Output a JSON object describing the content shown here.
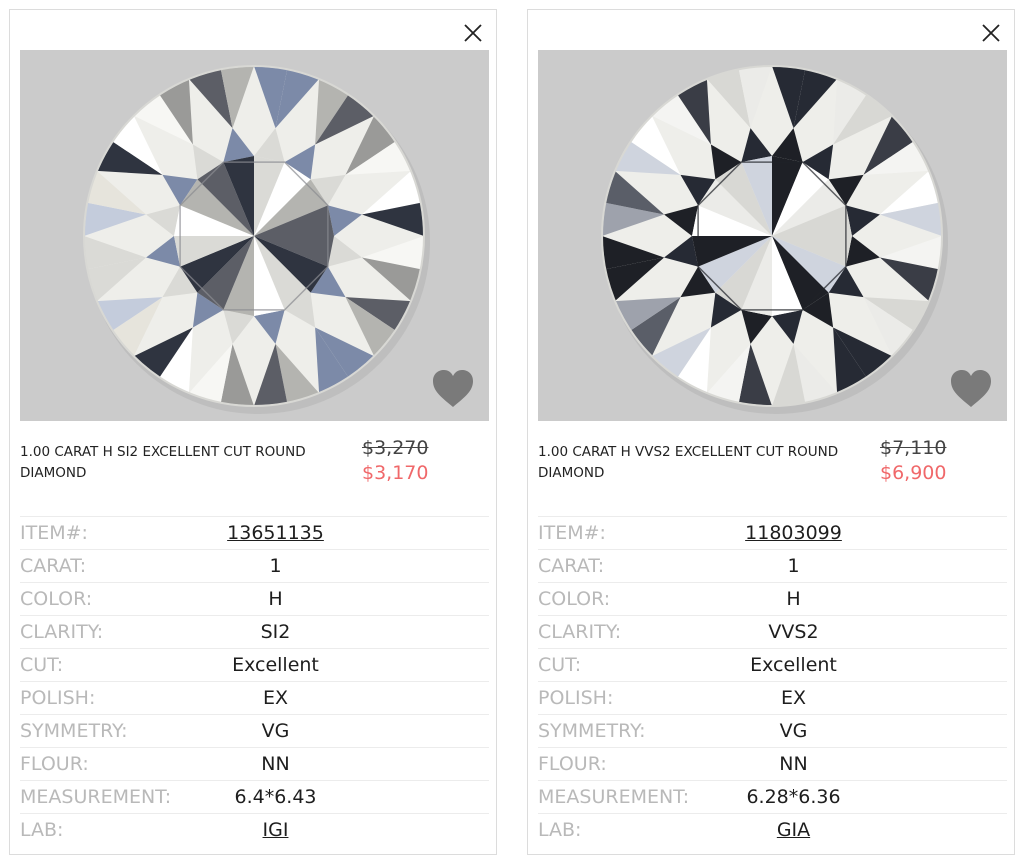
{
  "cards": [
    {
      "title": "1.00 CARAT H SI2 EXCELLENT CUT ROUND DIAMOND",
      "old_price": "$3,270",
      "new_price": "$3,170",
      "specs": [
        {
          "label": "ITEM#:",
          "value": "13651135"
        },
        {
          "label": "CARAT:",
          "value": "1"
        },
        {
          "label": "COLOR:",
          "value": "H"
        },
        {
          "label": "CLARITY:",
          "value": "SI2"
        },
        {
          "label": "CUT:",
          "value": "Excellent"
        },
        {
          "label": "POLISH:",
          "value": "EX"
        },
        {
          "label": "SYMMETRY:",
          "value": "VG"
        },
        {
          "label": "FLOUR:",
          "value": "NN"
        },
        {
          "label": "MEASUREMENT:",
          "value": "6.4*6.43"
        },
        {
          "label": "LAB:",
          "value": "IGI"
        }
      ]
    },
    {
      "title": "1.00 CARAT H VVS2 EXCELLENT CUT ROUND DIAMOND",
      "old_price": "$7,110",
      "new_price": "$6,900",
      "specs": [
        {
          "label": "ITEM#:",
          "value": "11803099"
        },
        {
          "label": "CARAT:",
          "value": "1"
        },
        {
          "label": "COLOR:",
          "value": "H"
        },
        {
          "label": "CLARITY:",
          "value": "VVS2"
        },
        {
          "label": "CUT:",
          "value": "Excellent"
        },
        {
          "label": "POLISH:",
          "value": "EX"
        },
        {
          "label": "SYMMETRY:",
          "value": "VG"
        },
        {
          "label": "FLOUR:",
          "value": "NN"
        },
        {
          "label": "MEASUREMENT:",
          "value": "6.28*6.36"
        },
        {
          "label": "LAB:",
          "value": "GIA"
        }
      ]
    }
  ],
  "icons": {
    "close": "close-icon",
    "favorite": "heart-icon"
  },
  "colors": {
    "sale_price": "#f0686a",
    "label": "#b9b9b9",
    "photo_bg": "#c9c9c9"
  }
}
